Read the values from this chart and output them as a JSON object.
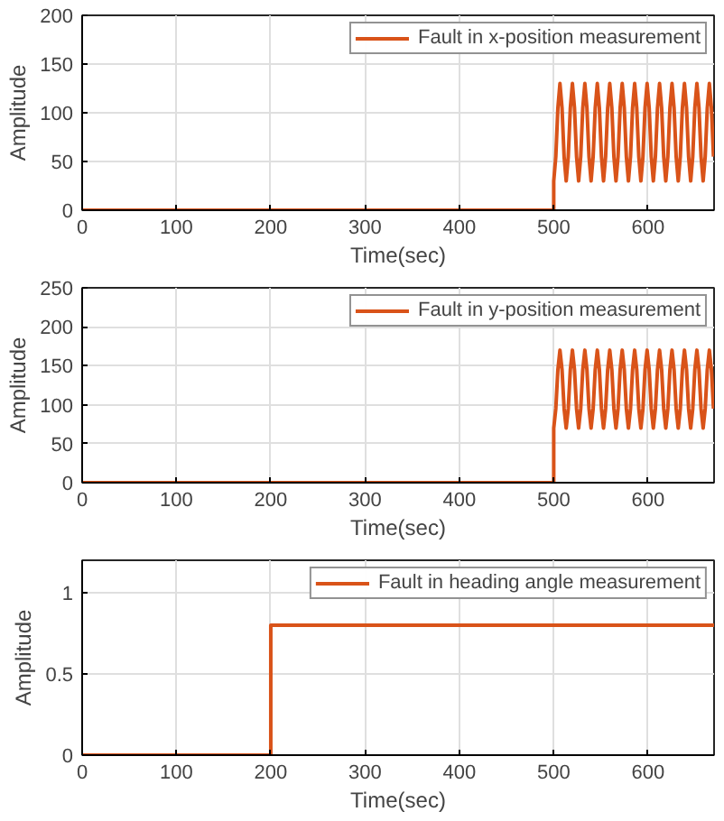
{
  "chart_data": [
    {
      "type": "line",
      "xlabel": "Time(sec)",
      "ylabel": "Amplitude",
      "xlim": [
        0,
        670
      ],
      "ylim": [
        0,
        200
      ],
      "xticks": [
        0,
        100,
        200,
        300,
        400,
        500,
        600
      ],
      "yticks": [
        0,
        50,
        100,
        150,
        200
      ],
      "grid": true,
      "legend": "top right",
      "line_style": "solid",
      "series": [
        {
          "name": "Fault in x-position measurement",
          "color": "#d95319",
          "x": [
            0,
            500,
            500,
            502.2,
            504.4,
            506.6,
            508.8,
            511,
            513.2,
            515.4,
            517.6,
            519.8,
            522,
            524.2,
            526.4,
            528.6,
            530.8,
            533,
            535.2,
            537.4,
            539.6,
            541.8,
            544,
            546.2,
            548.4,
            550.6,
            552.8,
            555,
            557.2,
            559.4,
            561.6,
            563.8,
            566,
            568.2,
            570.4,
            572.6,
            574.8,
            577,
            579.2,
            581.4,
            583.6,
            585.8,
            588,
            590.2,
            592.4,
            594.6,
            596.8,
            599,
            601.2,
            603.4,
            605.6,
            607.8,
            610,
            612.2,
            614.4,
            616.6,
            618.8,
            621,
            623.2,
            625.4,
            627.6,
            629.8,
            632,
            634.2,
            636.4,
            638.6,
            640.8,
            643,
            645.2,
            647.4,
            649.6,
            651.8,
            654,
            656.2,
            658.4,
            660.6,
            662.8,
            665,
            667.2,
            669.4
          ],
          "values": [
            0,
            0,
            30,
            55,
            105,
            130,
            105,
            55,
            30,
            55,
            105,
            130,
            105,
            55,
            30,
            55,
            105,
            130,
            105,
            55,
            30,
            55,
            105,
            130,
            105,
            55,
            30,
            55,
            105,
            130,
            105,
            55,
            30,
            55,
            105,
            130,
            105,
            55,
            30,
            55,
            105,
            130,
            105,
            55,
            30,
            55,
            105,
            130,
            105,
            55,
            30,
            55,
            105,
            130,
            105,
            55,
            30,
            55,
            105,
            130,
            105,
            55,
            30,
            55,
            105,
            130,
            105,
            55,
            30,
            55,
            105,
            130,
            105,
            55,
            30,
            55,
            105,
            130,
            105,
            55
          ]
        }
      ]
    },
    {
      "type": "line",
      "xlabel": "Time(sec)",
      "ylabel": "Amplitude",
      "xlim": [
        0,
        670
      ],
      "ylim": [
        0,
        250
      ],
      "xticks": [
        0,
        100,
        200,
        300,
        400,
        500,
        600
      ],
      "yticks": [
        0,
        50,
        100,
        150,
        200,
        250
      ],
      "grid": true,
      "legend": "top right",
      "line_style": "solid",
      "series": [
        {
          "name": "Fault in y-position measurement",
          "color": "#d95319",
          "x": [
            0,
            500,
            500,
            502.2,
            504.4,
            506.6,
            508.8,
            511,
            513.2,
            515.4,
            517.6,
            519.8,
            522,
            524.2,
            526.4,
            528.6,
            530.8,
            533,
            535.2,
            537.4,
            539.6,
            541.8,
            544,
            546.2,
            548.4,
            550.6,
            552.8,
            555,
            557.2,
            559.4,
            561.6,
            563.8,
            566,
            568.2,
            570.4,
            572.6,
            574.8,
            577,
            579.2,
            581.4,
            583.6,
            585.8,
            588,
            590.2,
            592.4,
            594.6,
            596.8,
            599,
            601.2,
            603.4,
            605.6,
            607.8,
            610,
            612.2,
            614.4,
            616.6,
            618.8,
            621,
            623.2,
            625.4,
            627.6,
            629.8,
            632,
            634.2,
            636.4,
            638.6,
            640.8,
            643,
            645.2,
            647.4,
            649.6,
            651.8,
            654,
            656.2,
            658.4,
            660.6,
            662.8,
            665,
            667.2,
            669.4
          ],
          "values": [
            0,
            0,
            70,
            95,
            145,
            170,
            145,
            95,
            70,
            95,
            145,
            170,
            145,
            95,
            70,
            95,
            145,
            170,
            145,
            95,
            70,
            95,
            145,
            170,
            145,
            95,
            70,
            95,
            145,
            170,
            145,
            95,
            70,
            95,
            145,
            170,
            145,
            95,
            70,
            95,
            145,
            170,
            145,
            95,
            70,
            95,
            145,
            170,
            145,
            95,
            70,
            95,
            145,
            170,
            145,
            95,
            70,
            95,
            145,
            170,
            145,
            95,
            70,
            95,
            145,
            170,
            145,
            95,
            70,
            95,
            145,
            170,
            145,
            95,
            70,
            95,
            145,
            170,
            145,
            95
          ]
        }
      ]
    },
    {
      "type": "line",
      "xlabel": "Time(sec)",
      "ylabel": "Amplitude",
      "xlim": [
        0,
        670
      ],
      "ylim": [
        0,
        1.2
      ],
      "xticks": [
        0,
        100,
        200,
        300,
        400,
        500,
        600
      ],
      "yticks": [
        0,
        0.5,
        1
      ],
      "grid": true,
      "legend": "top right",
      "line_style": "solid",
      "series": [
        {
          "name": "Fault in heading angle measurement",
          "color": "#d95319",
          "x": [
            0,
            200,
            200,
            670
          ],
          "values": [
            0,
            0,
            0.8,
            0.8
          ]
        }
      ]
    }
  ]
}
